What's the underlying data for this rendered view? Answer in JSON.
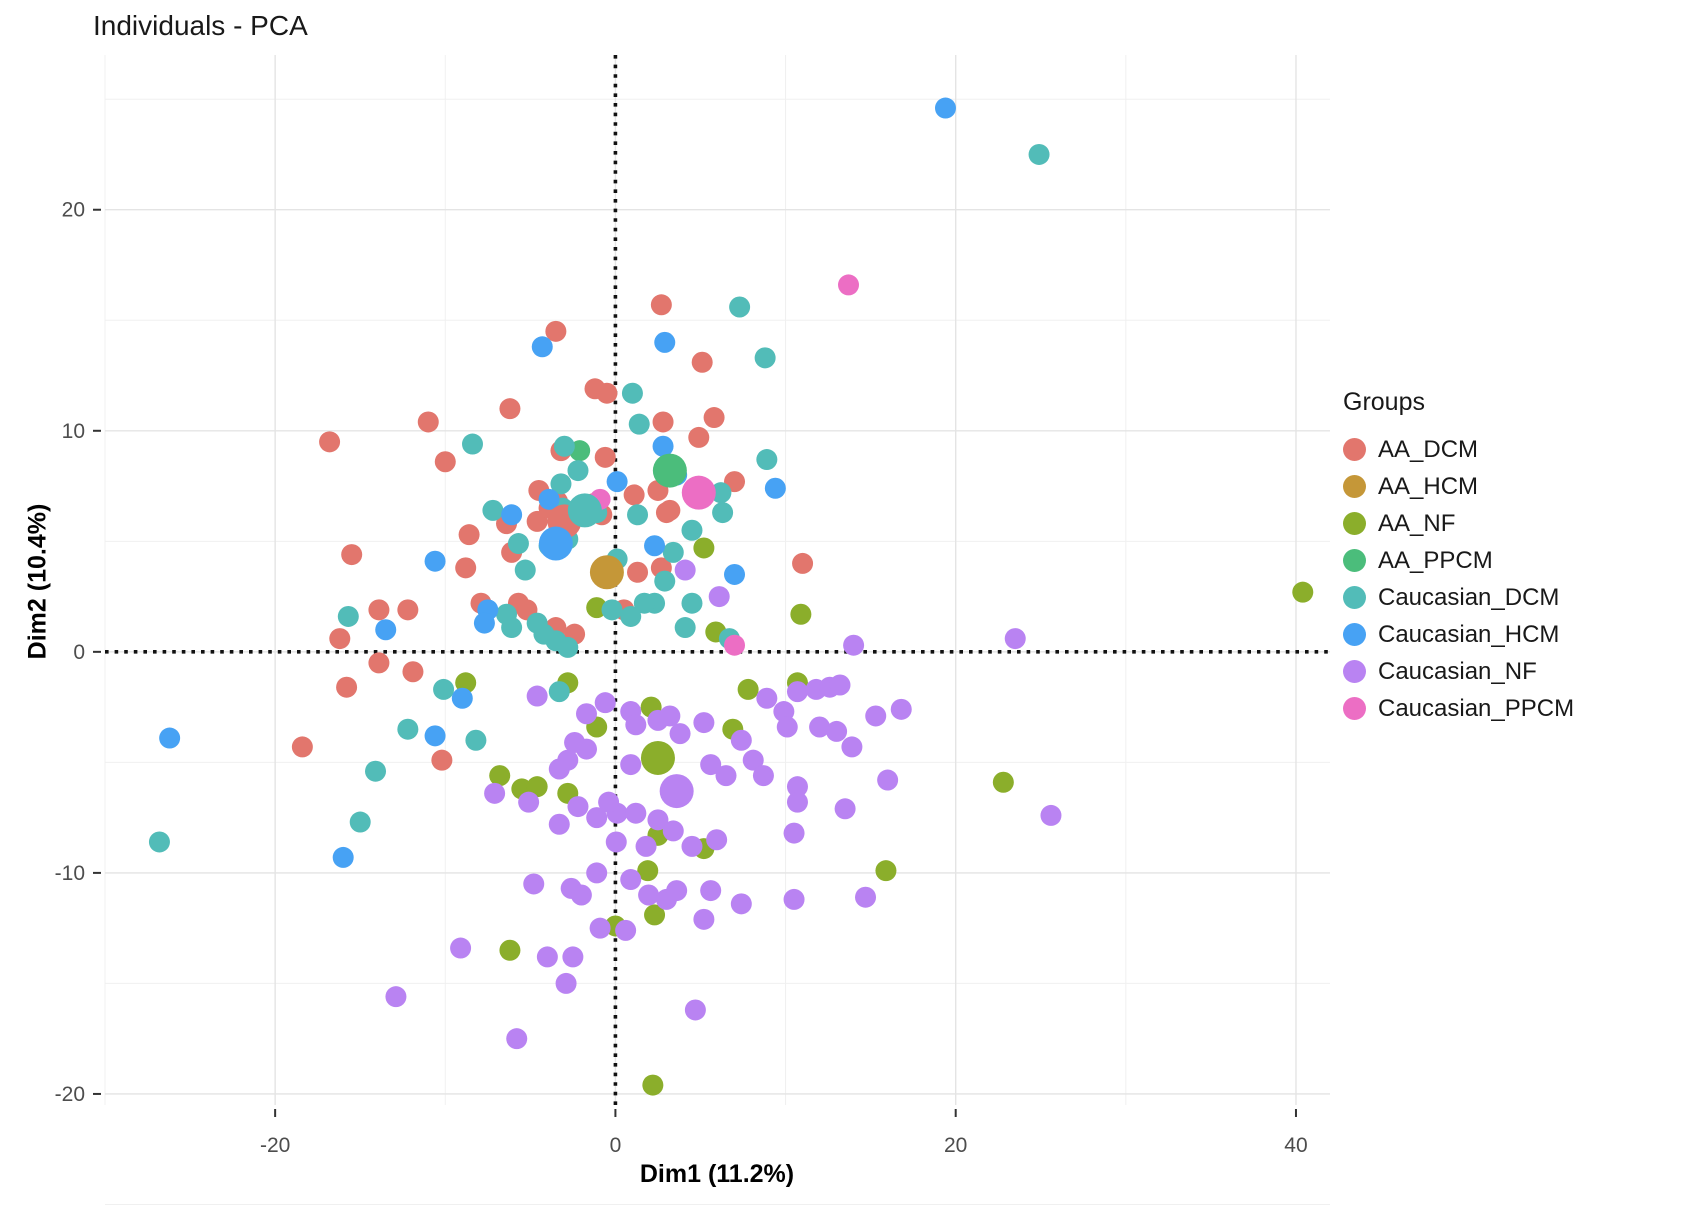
{
  "title": "Individuals - PCA",
  "chart_data": {
    "type": "scatter",
    "title": "Individuals - PCA",
    "xlabel": "Dim1 (11.2%)",
    "ylabel": "Dim2 (10.4%)",
    "xlim": [
      -30,
      42
    ],
    "ylim": [
      -20.5,
      27
    ],
    "x_ticks": [
      -20,
      0,
      20,
      40
    ],
    "y_ticks": [
      -20,
      -10,
      0,
      10,
      20
    ],
    "x_minor_ticks": [
      -30,
      -10,
      10,
      30
    ],
    "y_minor_ticks": [
      -25,
      -15,
      -5,
      5,
      15,
      25
    ],
    "grid": true,
    "background": "#ffffff",
    "major_grid_color": "#e4e4e4",
    "minor_grid_color": "#f0f0f0",
    "reference_lines": {
      "x": 0,
      "y": 0,
      "style": "dotted",
      "color": "#111111"
    },
    "axis_text_color": "#4d4d4d",
    "point_radius": 10.5,
    "centroid_radius": 17,
    "legend_title": "Groups",
    "legend_position": "right",
    "series": [
      {
        "name": "AA_DCM",
        "color": "#e2766d",
        "centroid": [
          -3.0,
          5.9
        ],
        "points": [
          [
            2.7,
            15.7
          ],
          [
            -3.5,
            14.5
          ],
          [
            5.1,
            13.1
          ],
          [
            -1.2,
            11.9
          ],
          [
            -0.5,
            11.7
          ],
          [
            -6.2,
            11.0
          ],
          [
            -11.0,
            10.4
          ],
          [
            -16.8,
            9.5
          ],
          [
            2.8,
            10.4
          ],
          [
            5.8,
            10.6
          ],
          [
            4.9,
            9.7
          ],
          [
            -3.2,
            9.1
          ],
          [
            -0.6,
            8.8
          ],
          [
            -10.0,
            8.6
          ],
          [
            -4.5,
            7.3
          ],
          [
            -3.4,
            6.8
          ],
          [
            -1.3,
            6.7
          ],
          [
            1.1,
            7.1
          ],
          [
            2.5,
            7.3
          ],
          [
            3.2,
            6.4
          ],
          [
            7.0,
            7.7
          ],
          [
            -15.5,
            4.4
          ],
          [
            -8.8,
            3.8
          ],
          [
            -8.6,
            5.3
          ],
          [
            -6.4,
            5.8
          ],
          [
            -6.1,
            4.5
          ],
          [
            -4.6,
            5.9
          ],
          [
            -3.9,
            6.5
          ],
          [
            -2.8,
            6.2
          ],
          [
            -0.8,
            6.2
          ],
          [
            11.0,
            4.0
          ],
          [
            3.0,
            6.3
          ],
          [
            -13.9,
            1.9
          ],
          [
            -12.2,
            1.9
          ],
          [
            -16.2,
            0.6
          ],
          [
            -7.9,
            2.2
          ],
          [
            -5.7,
            2.2
          ],
          [
            -5.2,
            1.9
          ],
          [
            -3.5,
            1.1
          ],
          [
            -2.4,
            0.8
          ],
          [
            0.5,
            1.9
          ],
          [
            1.3,
            3.6
          ],
          [
            2.7,
            3.8
          ],
          [
            -13.9,
            -0.5
          ],
          [
            -11.9,
            -0.9
          ],
          [
            -15.8,
            -1.6
          ],
          [
            -18.4,
            -4.3
          ],
          [
            -10.2,
            -4.9
          ]
        ]
      },
      {
        "name": "AA_HCM",
        "color": "#c59738",
        "centroid": [
          -0.5,
          3.6
        ],
        "points": []
      },
      {
        "name": "AA_NF",
        "color": "#8bae2b",
        "centroid": [
          2.5,
          -4.8
        ],
        "points": [
          [
            40.4,
            2.7
          ],
          [
            5.2,
            4.7
          ],
          [
            -1.1,
            2.0
          ],
          [
            5.9,
            0.9
          ],
          [
            10.9,
            1.7
          ],
          [
            -8.8,
            -1.4
          ],
          [
            -2.8,
            -1.4
          ],
          [
            2.1,
            -2.5
          ],
          [
            7.8,
            -1.7
          ],
          [
            10.7,
            -1.4
          ],
          [
            -1.1,
            -3.4
          ],
          [
            6.9,
            -3.5
          ],
          [
            -6.8,
            -5.6
          ],
          [
            -5.5,
            -6.2
          ],
          [
            -4.6,
            -6.1
          ],
          [
            -2.8,
            -6.4
          ],
          [
            22.8,
            -5.9
          ],
          [
            2.5,
            -8.3
          ],
          [
            5.2,
            -8.9
          ],
          [
            15.9,
            -9.9
          ],
          [
            1.9,
            -9.9
          ],
          [
            2.3,
            -11.9
          ],
          [
            0.0,
            -12.4
          ],
          [
            -6.2,
            -13.5
          ],
          [
            2.2,
            -19.6
          ]
        ]
      },
      {
        "name": "AA_PPCM",
        "color": "#4bbd7b",
        "centroid": [
          3.2,
          8.2
        ],
        "points": [
          [
            -2.1,
            9.1
          ]
        ]
      },
      {
        "name": "Caucasian_DCM",
        "color": "#52bcb8",
        "centroid": [
          -1.8,
          6.4
        ],
        "points": [
          [
            24.9,
            22.5
          ],
          [
            7.3,
            15.6
          ],
          [
            8.8,
            13.3
          ],
          [
            1.0,
            11.7
          ],
          [
            1.4,
            10.3
          ],
          [
            -3.0,
            9.3
          ],
          [
            -8.4,
            9.4
          ],
          [
            -2.2,
            8.2
          ],
          [
            -3.2,
            7.6
          ],
          [
            -3.1,
            6.5
          ],
          [
            8.9,
            8.7
          ],
          [
            5.0,
            7.1
          ],
          [
            6.2,
            7.2
          ],
          [
            -7.2,
            6.4
          ],
          [
            -5.7,
            4.9
          ],
          [
            -5.3,
            3.7
          ],
          [
            -3.9,
            4.8
          ],
          [
            -2.8,
            5.1
          ],
          [
            -1.1,
            6.3
          ],
          [
            1.3,
            6.2
          ],
          [
            6.3,
            6.3
          ],
          [
            4.5,
            5.5
          ],
          [
            3.4,
            4.5
          ],
          [
            0.1,
            4.2
          ],
          [
            2.3,
            2.2
          ],
          [
            -0.2,
            1.9
          ],
          [
            0.9,
            1.6
          ],
          [
            1.7,
            2.2
          ],
          [
            -6.4,
            1.7
          ],
          [
            -6.1,
            1.1
          ],
          [
            -4.6,
            1.3
          ],
          [
            -4.2,
            0.8
          ],
          [
            -3.5,
            0.5
          ],
          [
            -2.8,
            0.2
          ],
          [
            4.1,
            1.1
          ],
          [
            4.5,
            2.2
          ],
          [
            6.7,
            0.6
          ],
          [
            2.9,
            3.2
          ],
          [
            -15.7,
            1.6
          ],
          [
            -10.1,
            -1.7
          ],
          [
            -12.2,
            -3.5
          ],
          [
            -8.2,
            -4.0
          ],
          [
            -14.1,
            -5.4
          ],
          [
            -15.0,
            -7.7
          ],
          [
            -26.8,
            -8.6
          ],
          [
            -3.3,
            -1.8
          ]
        ]
      },
      {
        "name": "Caucasian_HCM",
        "color": "#47a2f4",
        "centroid": [
          -3.5,
          4.9
        ],
        "points": [
          [
            19.4,
            24.6
          ],
          [
            -4.3,
            13.8
          ],
          [
            2.9,
            14.0
          ],
          [
            2.8,
            9.3
          ],
          [
            3.6,
            8.0
          ],
          [
            9.4,
            7.4
          ],
          [
            0.1,
            7.7
          ],
          [
            -10.6,
            4.1
          ],
          [
            -7.5,
            1.9
          ],
          [
            -7.7,
            1.3
          ],
          [
            -13.5,
            1.0
          ],
          [
            2.3,
            4.8
          ],
          [
            7.0,
            3.5
          ],
          [
            -6.1,
            6.2
          ],
          [
            -3.9,
            6.9
          ],
          [
            -9.0,
            -2.1
          ],
          [
            -10.6,
            -3.8
          ],
          [
            -26.2,
            -3.9
          ],
          [
            -16.0,
            -9.3
          ]
        ]
      },
      {
        "name": "Caucasian_NF",
        "color": "#b983f2",
        "centroid": [
          3.6,
          -6.3
        ],
        "points": [
          [
            4.1,
            3.7
          ],
          [
            6.1,
            2.5
          ],
          [
            14.0,
            0.3
          ],
          [
            23.5,
            0.6
          ],
          [
            -4.6,
            -2.0
          ],
          [
            -0.6,
            -2.3
          ],
          [
            -1.7,
            -2.8
          ],
          [
            -2.4,
            -4.1
          ],
          [
            -1.7,
            -4.4
          ],
          [
            0.9,
            -2.7
          ],
          [
            1.2,
            -3.3
          ],
          [
            2.5,
            -3.1
          ],
          [
            3.2,
            -2.9
          ],
          [
            3.8,
            -3.7
          ],
          [
            5.2,
            -3.2
          ],
          [
            7.4,
            -4.0
          ],
          [
            8.9,
            -2.1
          ],
          [
            9.9,
            -2.7
          ],
          [
            10.1,
            -3.4
          ],
          [
            10.7,
            -1.8
          ],
          [
            11.8,
            -1.7
          ],
          [
            12.0,
            -3.4
          ],
          [
            12.6,
            -1.6
          ],
          [
            13.2,
            -1.5
          ],
          [
            15.3,
            -2.9
          ],
          [
            16.8,
            -2.6
          ],
          [
            13.0,
            -3.6
          ],
          [
            13.9,
            -4.3
          ],
          [
            0.9,
            -5.1
          ],
          [
            5.6,
            -5.1
          ],
          [
            6.5,
            -5.6
          ],
          [
            8.1,
            -4.9
          ],
          [
            8.7,
            -5.6
          ],
          [
            16.0,
            -5.8
          ],
          [
            13.5,
            -7.1
          ],
          [
            25.6,
            -7.4
          ],
          [
            10.7,
            -6.1
          ],
          [
            10.7,
            -6.8
          ],
          [
            10.5,
            -8.2
          ],
          [
            -7.1,
            -6.4
          ],
          [
            -5.1,
            -6.8
          ],
          [
            -2.2,
            -7.0
          ],
          [
            -3.3,
            -7.8
          ],
          [
            -1.1,
            -7.5
          ],
          [
            0.1,
            -7.3
          ],
          [
            -0.4,
            -6.8
          ],
          [
            1.2,
            -7.3
          ],
          [
            2.5,
            -7.6
          ],
          [
            3.4,
            -8.1
          ],
          [
            1.8,
            -8.8
          ],
          [
            0.05,
            -8.6
          ],
          [
            4.5,
            -8.8
          ],
          [
            5.95,
            -8.5
          ],
          [
            -3.3,
            -5.3
          ],
          [
            -2.8,
            -4.9
          ],
          [
            -4.8,
            -10.5
          ],
          [
            -2.6,
            -10.7
          ],
          [
            -2.0,
            -11.0
          ],
          [
            -1.1,
            -10.0
          ],
          [
            0.9,
            -10.3
          ],
          [
            1.95,
            -11.0
          ],
          [
            3.0,
            -11.2
          ],
          [
            3.6,
            -10.8
          ],
          [
            5.6,
            -10.8
          ],
          [
            5.2,
            -12.1
          ],
          [
            7.4,
            -11.4
          ],
          [
            10.5,
            -11.2
          ],
          [
            14.7,
            -11.1
          ],
          [
            -0.9,
            -12.5
          ],
          [
            0.6,
            -12.6
          ],
          [
            -9.1,
            -13.4
          ],
          [
            -4.0,
            -13.8
          ],
          [
            -2.5,
            -13.8
          ],
          [
            -2.9,
            -15.0
          ],
          [
            -12.9,
            -15.6
          ],
          [
            4.7,
            -16.2
          ],
          [
            -5.8,
            -17.5
          ]
        ]
      },
      {
        "name": "Caucasian_PPCM",
        "color": "#ec6ec4",
        "centroid": [
          4.9,
          7.2
        ],
        "points": [
          [
            13.7,
            16.6
          ],
          [
            -0.9,
            6.9
          ],
          [
            7.0,
            0.3
          ]
        ]
      }
    ]
  }
}
